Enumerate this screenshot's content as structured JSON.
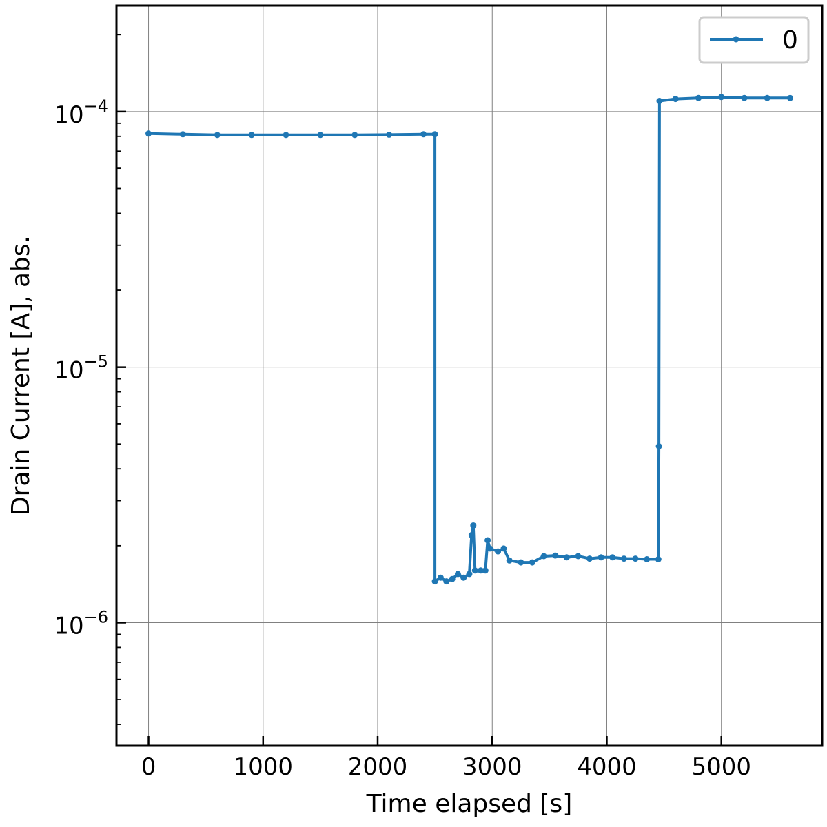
{
  "chart_data": {
    "type": "line",
    "xlabel": "Time elapsed [s]",
    "ylabel": "Drain Current [A], abs.",
    "x_scale": "linear",
    "y_scale": "log",
    "xlim": [
      -280,
      5880
    ],
    "ylim": [
      3.3e-07,
      0.00026
    ],
    "x_ticks": [
      0,
      1000,
      2000,
      3000,
      4000,
      5000
    ],
    "x_tick_labels": [
      "0",
      "1000",
      "2000",
      "3000",
      "4000",
      "5000"
    ],
    "y_ticks": [
      1e-06,
      1e-05,
      0.0001
    ],
    "y_tick_labels": [
      {
        "base": "10",
        "exp": "−6"
      },
      {
        "base": "10",
        "exp": "−5"
      },
      {
        "base": "10",
        "exp": "−4"
      }
    ],
    "grid": true,
    "legend_position": "top-right",
    "series": [
      {
        "name": "0",
        "color": "#1f77b4",
        "points": [
          [
            0,
            8.2e-05
          ],
          [
            300,
            8.15e-05
          ],
          [
            600,
            8.1e-05
          ],
          [
            900,
            8.1e-05
          ],
          [
            1200,
            8.1e-05
          ],
          [
            1500,
            8.1e-05
          ],
          [
            1800,
            8.1e-05
          ],
          [
            2100,
            8.12e-05
          ],
          [
            2400,
            8.15e-05
          ],
          [
            2500,
            8.15e-05
          ],
          [
            2500,
            1.45e-06
          ],
          [
            2550,
            1.5e-06
          ],
          [
            2600,
            1.45e-06
          ],
          [
            2650,
            1.48e-06
          ],
          [
            2700,
            1.55e-06
          ],
          [
            2750,
            1.5e-06
          ],
          [
            2800,
            1.55e-06
          ],
          [
            2820,
            2.2e-06
          ],
          [
            2835,
            2.4e-06
          ],
          [
            2850,
            1.6e-06
          ],
          [
            2900,
            1.6e-06
          ],
          [
            2940,
            1.6e-06
          ],
          [
            2960,
            2.1e-06
          ],
          [
            2980,
            1.95e-06
          ],
          [
            3050,
            1.9e-06
          ],
          [
            3100,
            1.95e-06
          ],
          [
            3150,
            1.75e-06
          ],
          [
            3250,
            1.72e-06
          ],
          [
            3350,
            1.72e-06
          ],
          [
            3450,
            1.82e-06
          ],
          [
            3550,
            1.83e-06
          ],
          [
            3650,
            1.8e-06
          ],
          [
            3750,
            1.82e-06
          ],
          [
            3850,
            1.78e-06
          ],
          [
            3950,
            1.8e-06
          ],
          [
            4050,
            1.8e-06
          ],
          [
            4150,
            1.78e-06
          ],
          [
            4250,
            1.78e-06
          ],
          [
            4350,
            1.77e-06
          ],
          [
            4450,
            1.77e-06
          ],
          [
            4455,
            4.9e-06
          ],
          [
            4460,
            0.00011
          ],
          [
            4600,
            0.000112
          ],
          [
            4800,
            0.000113
          ],
          [
            5000,
            0.000114
          ],
          [
            5200,
            0.000113
          ],
          [
            5400,
            0.000113
          ],
          [
            5600,
            0.000113
          ]
        ]
      }
    ]
  }
}
